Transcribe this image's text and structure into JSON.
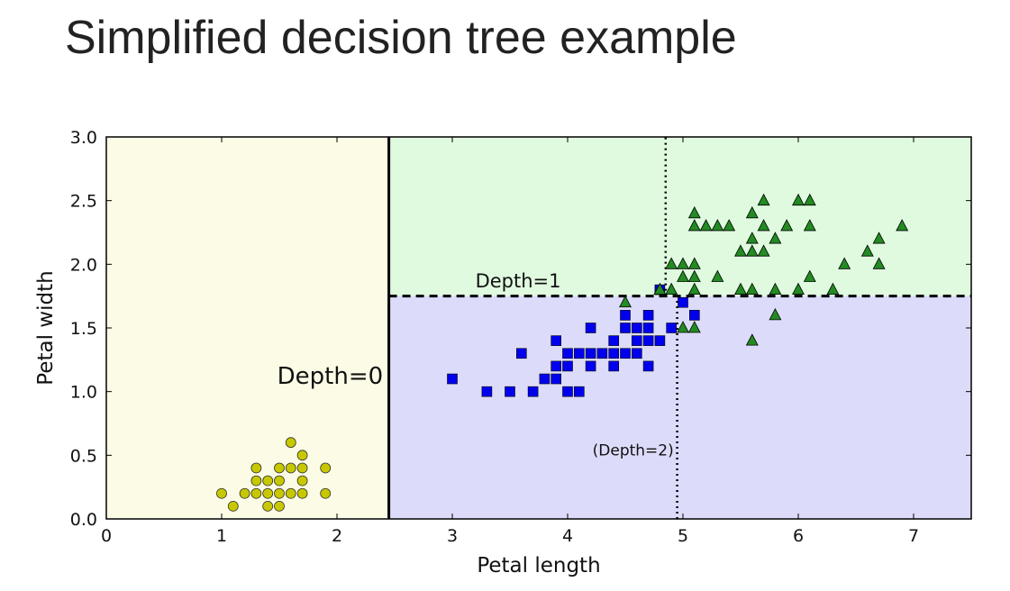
{
  "slide": {
    "title": "Simplified decision tree example"
  },
  "chart_data": {
    "type": "scatter",
    "xlabel": "Petal length",
    "ylabel": "Petal width",
    "xlim": [
      0,
      7.5
    ],
    "ylim": [
      0,
      3.0
    ],
    "xticks": [
      "0",
      "1",
      "2",
      "3",
      "4",
      "5",
      "6",
      "7"
    ],
    "yticks": [
      "0.0",
      "0.5",
      "1.0",
      "1.5",
      "2.0",
      "2.5",
      "3.0"
    ],
    "xtick_values": [
      0,
      1,
      2,
      3,
      4,
      5,
      6,
      7
    ],
    "ytick_values": [
      0,
      0.5,
      1.0,
      1.5,
      2.0,
      2.5,
      3.0
    ],
    "regions": [
      {
        "x0": 0,
        "x1": 2.45,
        "y0": 0,
        "y1": 3.0,
        "color": "#fcfce6"
      },
      {
        "x0": 2.45,
        "x1": 7.5,
        "y0": 1.75,
        "y1": 3.0,
        "color": "#e0fae0"
      },
      {
        "x0": 2.45,
        "x1": 7.5,
        "y0": 0,
        "y1": 1.75,
        "color": "#dcdcfa"
      }
    ],
    "boundaries": [
      {
        "label": "Depth=0",
        "orientation": "vertical",
        "value": 2.45,
        "style": "solid"
      },
      {
        "label": "Depth=1",
        "orientation": "horizontal",
        "value": 1.75,
        "from": 2.45,
        "style": "dashed"
      },
      {
        "label": "(Depth=2)",
        "orientation": "vertical",
        "value": 4.95,
        "style": "dotted",
        "secondary_value": 4.85
      }
    ],
    "annotations": [
      {
        "text": "Depth=0",
        "x": 2.4,
        "y": 1.06,
        "size": "large",
        "anchor": "end"
      },
      {
        "text": "Depth=1",
        "x": 3.2,
        "y": 1.82,
        "size": "medium",
        "anchor": "start"
      },
      {
        "text": "(Depth=2)",
        "x": 4.92,
        "y": 0.5,
        "size": "small",
        "anchor": "end"
      }
    ],
    "series": [
      {
        "marker": "circle",
        "color": "#c8c800",
        "points": [
          [
            1.0,
            0.2
          ],
          [
            1.1,
            0.1
          ],
          [
            1.2,
            0.2
          ],
          [
            1.3,
            0.2
          ],
          [
            1.3,
            0.3
          ],
          [
            1.3,
            0.4
          ],
          [
            1.4,
            0.1
          ],
          [
            1.4,
            0.2
          ],
          [
            1.4,
            0.3
          ],
          [
            1.5,
            0.1
          ],
          [
            1.5,
            0.2
          ],
          [
            1.5,
            0.3
          ],
          [
            1.5,
            0.4
          ],
          [
            1.6,
            0.2
          ],
          [
            1.6,
            0.4
          ],
          [
            1.6,
            0.6
          ],
          [
            1.7,
            0.2
          ],
          [
            1.7,
            0.3
          ],
          [
            1.7,
            0.4
          ],
          [
            1.7,
            0.5
          ],
          [
            1.9,
            0.2
          ],
          [
            1.9,
            0.4
          ]
        ]
      },
      {
        "marker": "square",
        "color": "#0000ee",
        "points": [
          [
            3.0,
            1.1
          ],
          [
            3.3,
            1.0
          ],
          [
            3.5,
            1.0
          ],
          [
            3.6,
            1.3
          ],
          [
            3.7,
            1.0
          ],
          [
            3.8,
            1.1
          ],
          [
            3.9,
            1.1
          ],
          [
            3.9,
            1.2
          ],
          [
            3.9,
            1.4
          ],
          [
            4.0,
            1.0
          ],
          [
            4.0,
            1.2
          ],
          [
            4.0,
            1.3
          ],
          [
            4.1,
            1.0
          ],
          [
            4.1,
            1.3
          ],
          [
            4.2,
            1.2
          ],
          [
            4.2,
            1.3
          ],
          [
            4.2,
            1.5
          ],
          [
            4.3,
            1.3
          ],
          [
            4.4,
            1.2
          ],
          [
            4.4,
            1.3
          ],
          [
            4.4,
            1.4
          ],
          [
            4.5,
            1.3
          ],
          [
            4.5,
            1.5
          ],
          [
            4.5,
            1.6
          ],
          [
            4.6,
            1.3
          ],
          [
            4.6,
            1.4
          ],
          [
            4.6,
            1.5
          ],
          [
            4.7,
            1.2
          ],
          [
            4.7,
            1.4
          ],
          [
            4.7,
            1.5
          ],
          [
            4.7,
            1.6
          ],
          [
            4.8,
            1.4
          ],
          [
            4.8,
            1.8
          ],
          [
            4.9,
            1.5
          ],
          [
            5.0,
            1.7
          ],
          [
            5.1,
            1.6
          ]
        ]
      },
      {
        "marker": "triangle",
        "color": "#228b22",
        "points": [
          [
            4.5,
            1.7
          ],
          [
            4.8,
            1.8
          ],
          [
            4.9,
            1.8
          ],
          [
            4.9,
            2.0
          ],
          [
            5.0,
            1.5
          ],
          [
            5.0,
            1.9
          ],
          [
            5.0,
            2.0
          ],
          [
            5.1,
            1.5
          ],
          [
            5.1,
            1.8
          ],
          [
            5.1,
            1.9
          ],
          [
            5.1,
            2.0
          ],
          [
            5.1,
            2.3
          ],
          [
            5.1,
            2.4
          ],
          [
            5.2,
            2.3
          ],
          [
            5.3,
            1.9
          ],
          [
            5.3,
            2.3
          ],
          [
            5.4,
            2.3
          ],
          [
            5.5,
            1.8
          ],
          [
            5.5,
            2.1
          ],
          [
            5.6,
            1.4
          ],
          [
            5.6,
            1.8
          ],
          [
            5.6,
            2.1
          ],
          [
            5.6,
            2.2
          ],
          [
            5.6,
            2.4
          ],
          [
            5.7,
            2.1
          ],
          [
            5.7,
            2.3
          ],
          [
            5.7,
            2.5
          ],
          [
            5.8,
            1.6
          ],
          [
            5.8,
            1.8
          ],
          [
            5.8,
            2.2
          ],
          [
            5.9,
            2.3
          ],
          [
            6.0,
            1.8
          ],
          [
            6.0,
            2.5
          ],
          [
            6.1,
            1.9
          ],
          [
            6.1,
            2.3
          ],
          [
            6.1,
            2.5
          ],
          [
            6.3,
            1.8
          ],
          [
            6.4,
            2.0
          ],
          [
            6.6,
            2.1
          ],
          [
            6.7,
            2.0
          ],
          [
            6.7,
            2.2
          ],
          [
            6.9,
            2.3
          ]
        ]
      }
    ]
  }
}
